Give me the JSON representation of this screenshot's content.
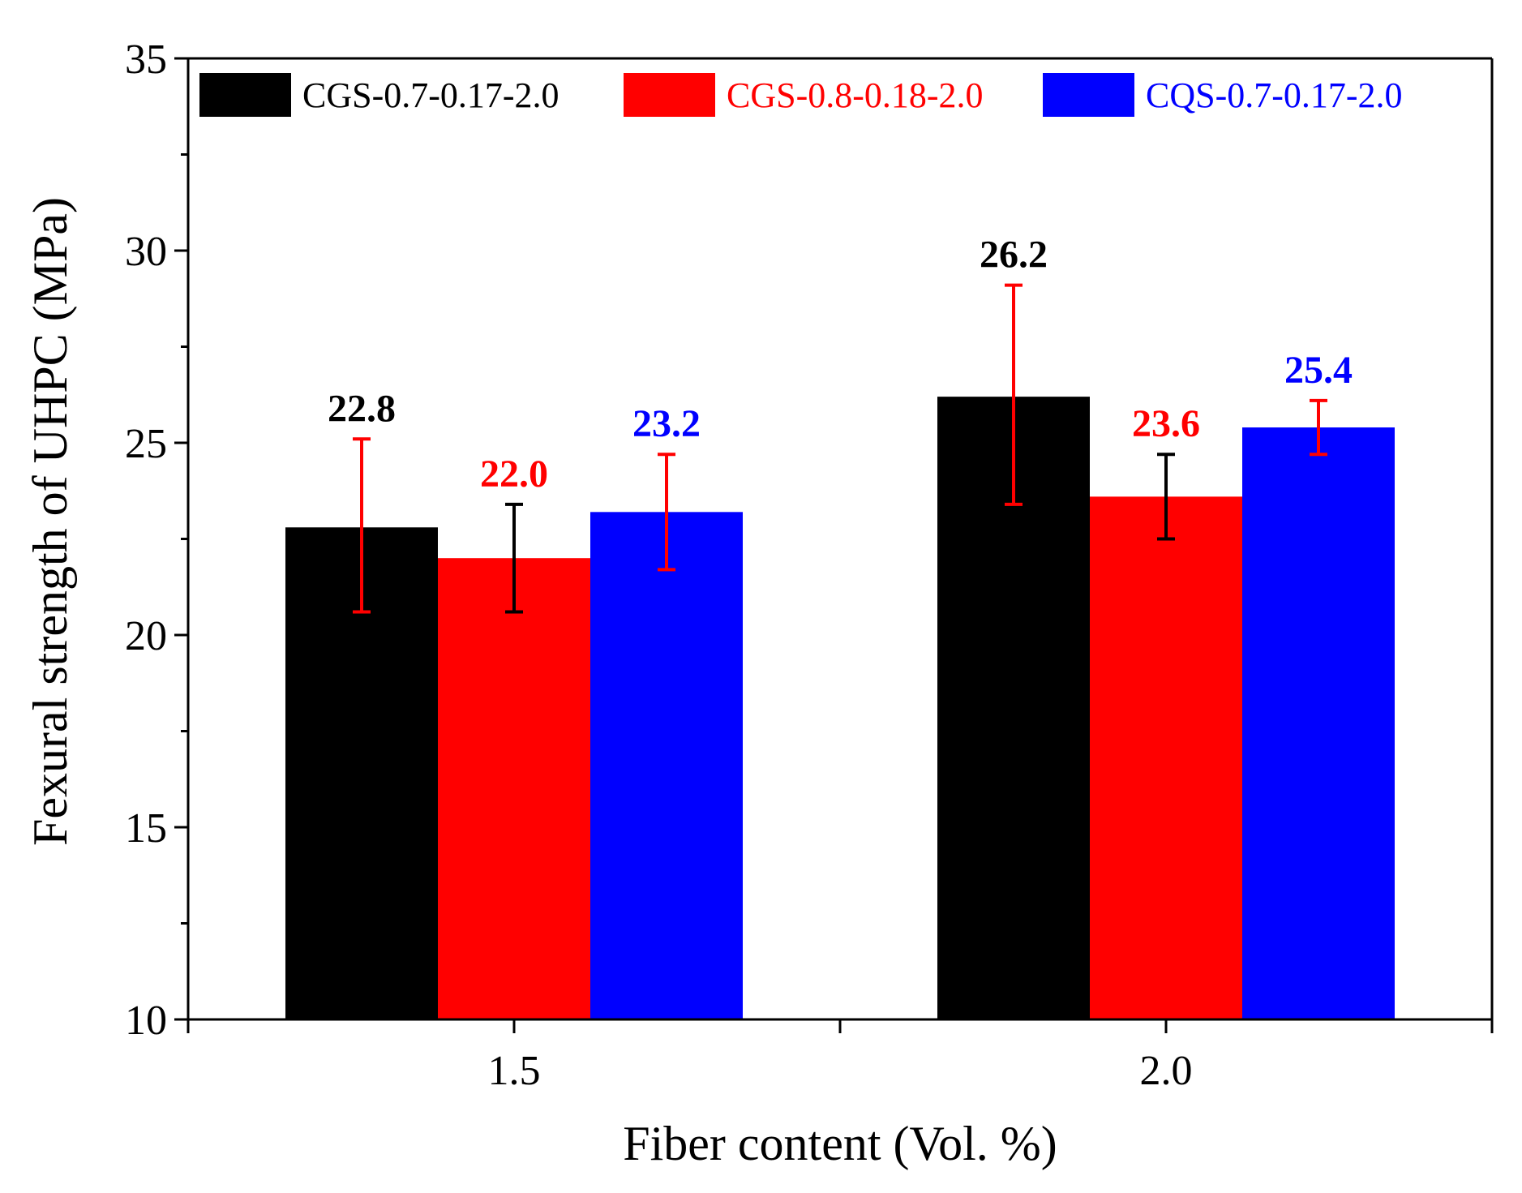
{
  "chart_data": {
    "type": "bar",
    "title": "",
    "xlabel": "Fiber content (Vol. %)",
    "ylabel": "Fexural strength of UHPC (MPa)",
    "categories": [
      "1.5",
      "2.0"
    ],
    "ylim": [
      10,
      35
    ],
    "yticks": [
      10,
      15,
      20,
      25,
      30,
      35
    ],
    "ytick_labels": [
      "10",
      "15",
      "20",
      "25",
      "30",
      "35"
    ],
    "grid": false,
    "legend_position": "top",
    "series": [
      {
        "name": "CGS-0.7-0.17-2.0",
        "color": "#000000",
        "errorbar_color": "#ff0000",
        "values": [
          22.8,
          26.2
        ],
        "error_low": [
          20.6,
          23.4
        ],
        "error_high": [
          25.1,
          29.1
        ],
        "value_labels": [
          "22.8",
          "26.2"
        ]
      },
      {
        "name": "CGS-0.8-0.18-2.0",
        "color": "#ff0000",
        "errorbar_color": "#000000",
        "values": [
          22.0,
          23.6
        ],
        "error_low": [
          20.6,
          22.5
        ],
        "error_high": [
          23.4,
          24.7
        ],
        "value_labels": [
          "22.0",
          "23.6"
        ]
      },
      {
        "name": "CQS-0.7-0.17-2.0",
        "color": "#0000ff",
        "errorbar_color": "#ff0000",
        "values": [
          23.2,
          25.4
        ],
        "error_low": [
          21.7,
          24.7
        ],
        "error_high": [
          24.7,
          26.1
        ],
        "value_labels": [
          "23.2",
          "25.4"
        ]
      }
    ]
  }
}
